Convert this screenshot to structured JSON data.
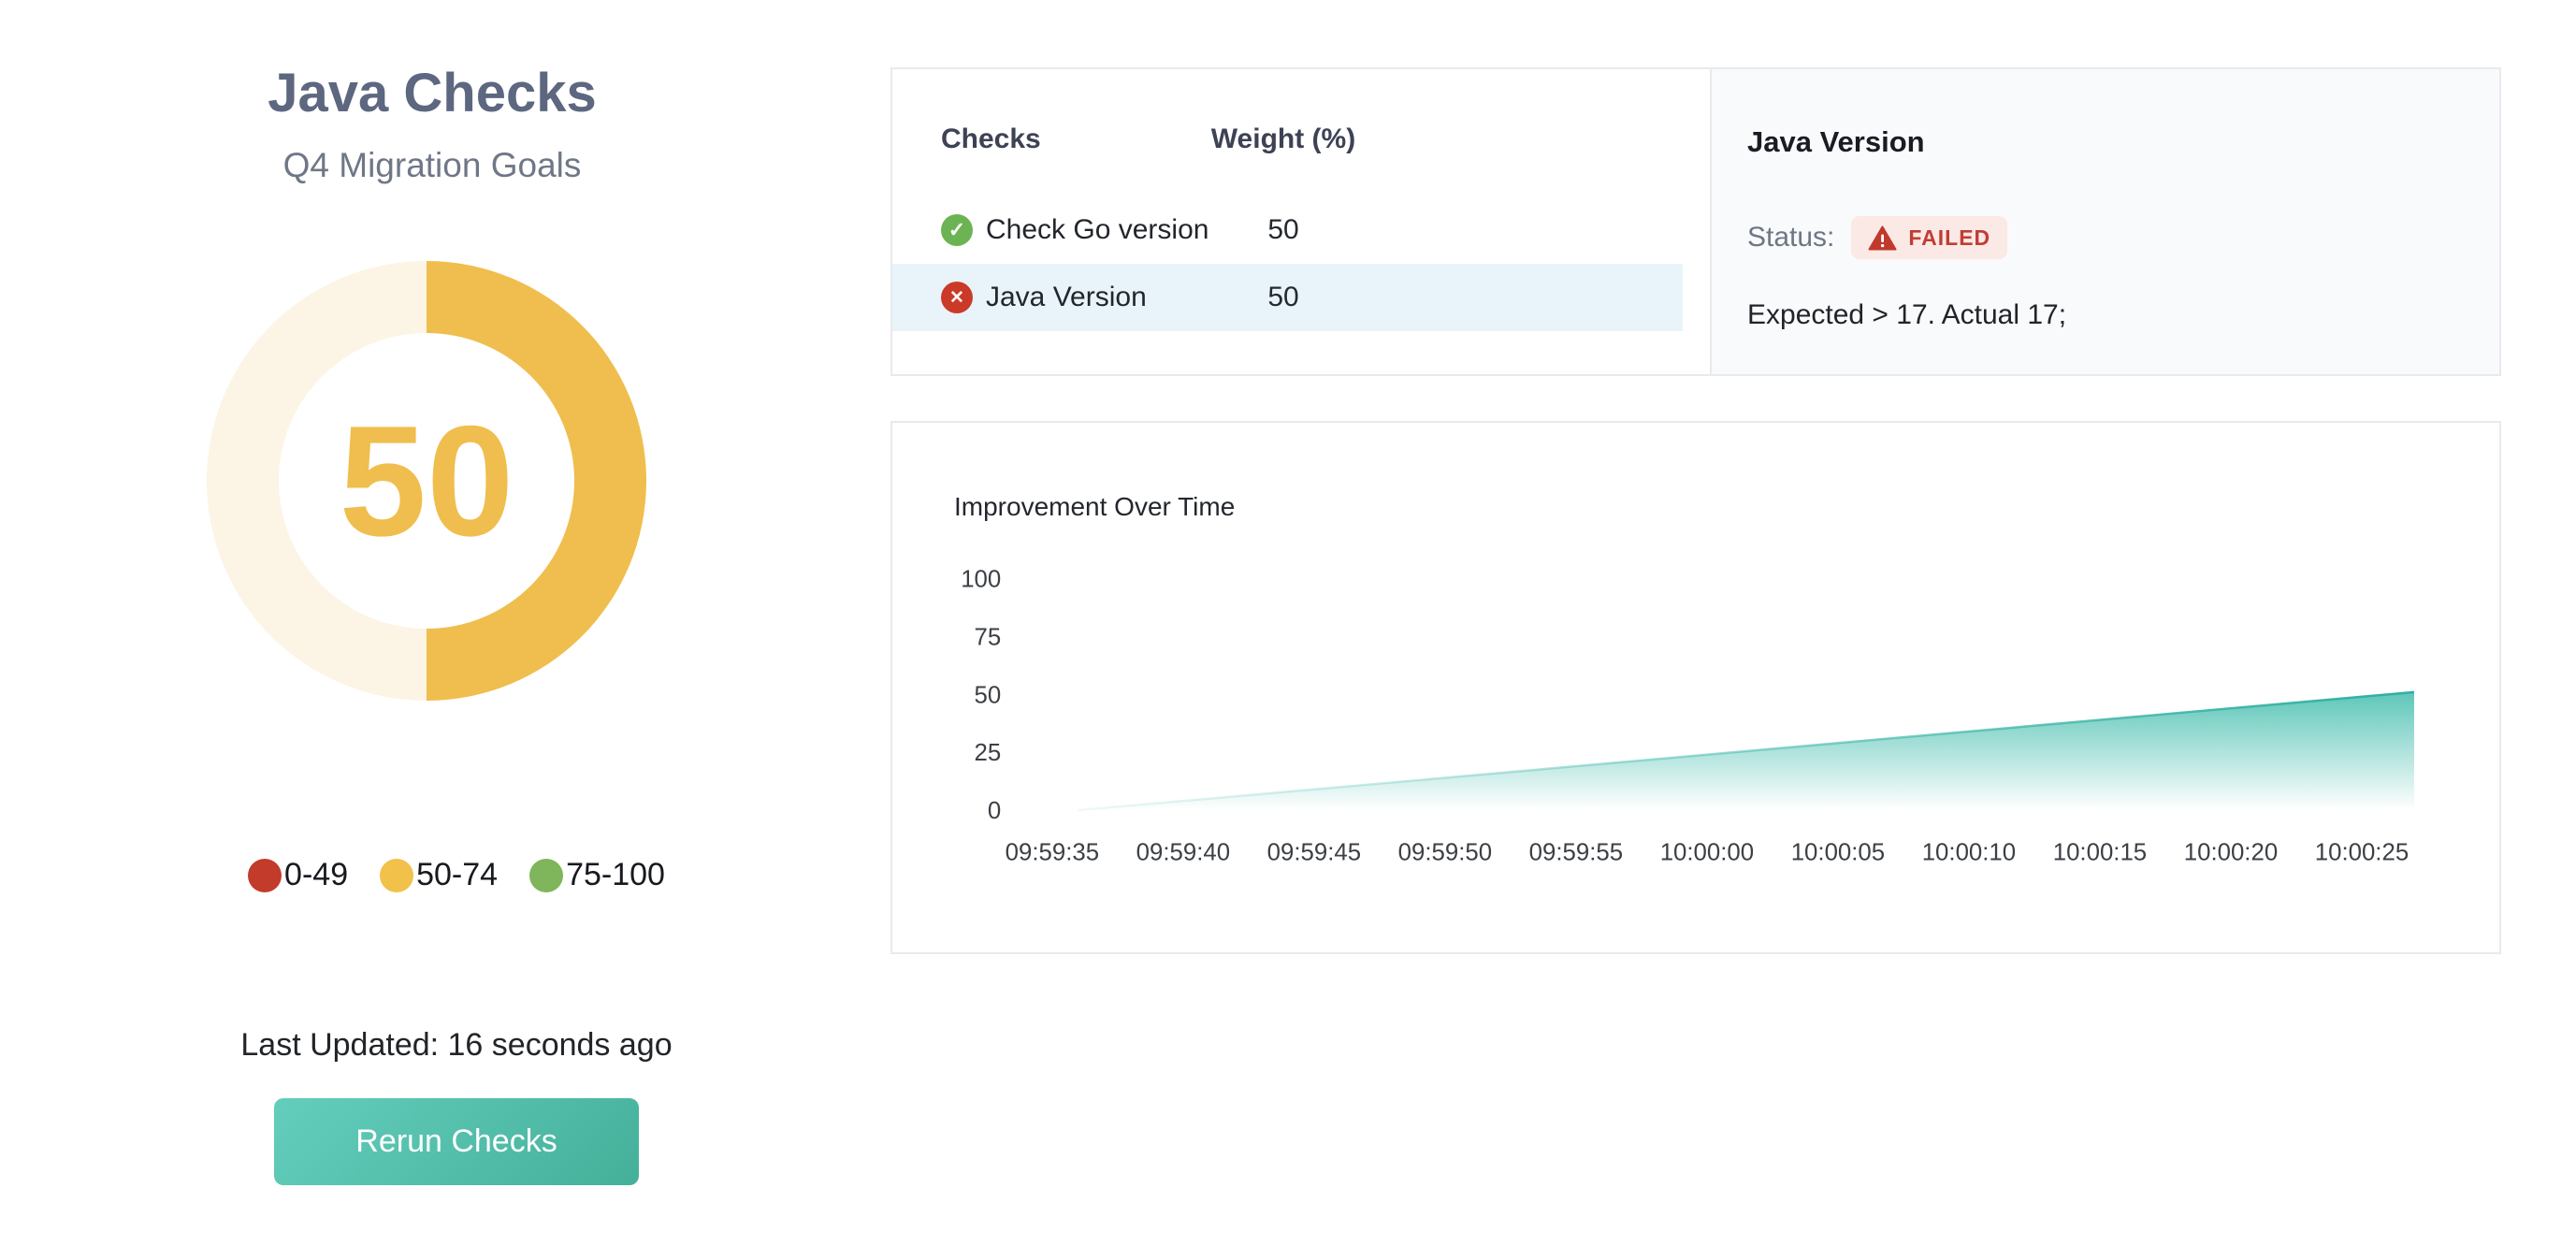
{
  "left_panel": {
    "title": "Java Checks",
    "subtitle": "Q4 Migration Goals",
    "score": {
      "value": 50,
      "max": 100
    },
    "score_colors": {
      "fill": "#F0BE4E",
      "track": "#FCF4E5"
    },
    "legend": {
      "items": [
        {
          "label": "0-49",
          "color": "#C23B2B"
        },
        {
          "label": "50-74",
          "color": "#F2C14A"
        },
        {
          "label": "75-100",
          "color": "#7FB55B"
        }
      ]
    },
    "last_updated": "Last Updated: 16 seconds ago",
    "rerun_button_label": "Rerun Checks",
    "button_gradient": [
      "#63CEBC",
      "#45B09A"
    ]
  },
  "checks_panel": {
    "columns": {
      "checks": "Checks",
      "weight": "Weight (%)"
    },
    "rows": [
      {
        "name": "Check Go version",
        "weight": "50",
        "status": "passed",
        "selected": false
      },
      {
        "name": "Java Version",
        "weight": "50",
        "status": "failed",
        "selected": true
      }
    ],
    "status_colors": {
      "passed": "#6CB453",
      "failed": "#CB3A28"
    },
    "selected_row_color": "#e8f4f9"
  },
  "detail_panel": {
    "title": "Java Version",
    "status_label": "Status:",
    "status_badge": "FAILED",
    "badge_colors": {
      "background": "#fbe9e6",
      "text": "#c03d33",
      "icon": "#C0392B"
    },
    "message": "Expected > 17. Actual 17;"
  },
  "chart_data": {
    "type": "area",
    "title": "Improvement Over Time",
    "x_ticks": [
      "09:59:35",
      "09:59:40",
      "09:59:45",
      "09:59:50",
      "09:59:55",
      "10:00:00",
      "10:00:05",
      "10:00:10",
      "10:00:15",
      "10:00:20",
      "10:00:25"
    ],
    "x_tick_interval_seconds": 5,
    "y_ticks": [
      0,
      25,
      50,
      75,
      100
    ],
    "ylim": [
      0,
      100
    ],
    "grid": false,
    "legend_position": "none",
    "series": [
      {
        "name": "Improvement",
        "line_color": "#2FAE9F",
        "fill_color": "#55C3B5",
        "points": [
          {
            "time": "09:59:36",
            "value": 0
          },
          {
            "time": "10:00:27",
            "value": 51
          }
        ]
      }
    ]
  }
}
